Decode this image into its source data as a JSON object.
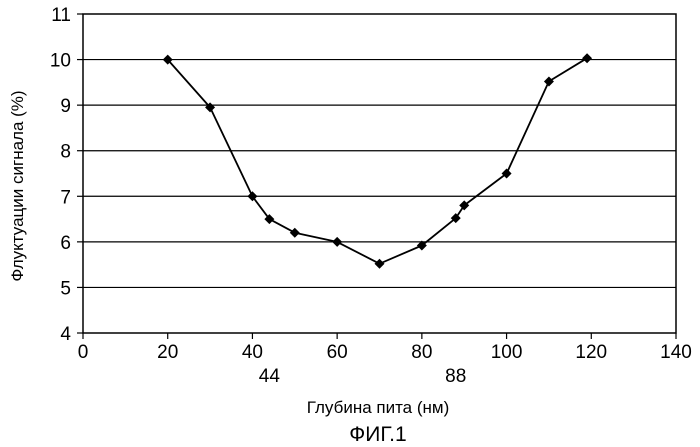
{
  "figure": {
    "caption": "ФИГ.1"
  },
  "chart_data": {
    "type": "line",
    "title": "",
    "xlabel": "Глубина пита (нм)",
    "ylabel": "Флуктуации сигнала (%)",
    "xlim": [
      0,
      140
    ],
    "ylim": [
      4,
      11
    ],
    "x_ticks": [
      0,
      20,
      40,
      60,
      80,
      100,
      120,
      140
    ],
    "y_ticks": [
      4,
      5,
      6,
      7,
      8,
      9,
      10,
      11
    ],
    "extra_x_ticks": [
      44,
      88
    ],
    "grid": "horizontal",
    "legend": "none",
    "marker": "diamond",
    "color": "#000000",
    "series": [
      {
        "x": [
          20,
          30,
          40,
          44,
          50,
          60,
          70,
          80,
          88,
          90,
          100,
          110,
          119
        ],
        "y": [
          10.0,
          8.95,
          7.0,
          6.5,
          6.2,
          6.0,
          5.52,
          5.92,
          6.52,
          6.8,
          7.5,
          9.52,
          10.03
        ]
      }
    ]
  }
}
